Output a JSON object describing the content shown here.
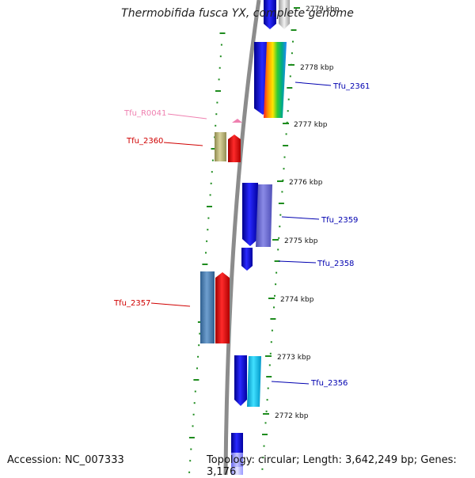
{
  "title": "Thermobifida fusca YX, complete genome",
  "footer": {
    "accession": "Accession: NC_007333",
    "topology": "Topology: circular; Length: 3,642,249 bp; Genes: 3,176"
  },
  "colors": {
    "backbone": "#8c8c8c",
    "tick": "#1e8c1e",
    "label_forward": "#0000b0",
    "label_reverse": "#d00000",
    "label_rna": "#ef80b0"
  },
  "ruler": [
    "2779 kbp",
    "2778 kbp",
    "2777 kbp",
    "2776 kbp",
    "2775 kbp",
    "2774 kbp",
    "2773 kbp",
    "2772 kbp"
  ],
  "genes": [
    {
      "label": "Tfu_2361",
      "strand": "forward"
    },
    {
      "label": "Tfu_R0041",
      "strand": "rna"
    },
    {
      "label": "Tfu_2360",
      "strand": "reverse"
    },
    {
      "label": "Tfu_2359",
      "strand": "forward"
    },
    {
      "label": "Tfu_2358",
      "strand": "forward"
    },
    {
      "label": "Tfu_2357",
      "strand": "reverse"
    },
    {
      "label": "Tfu_2356",
      "strand": "forward"
    }
  ]
}
